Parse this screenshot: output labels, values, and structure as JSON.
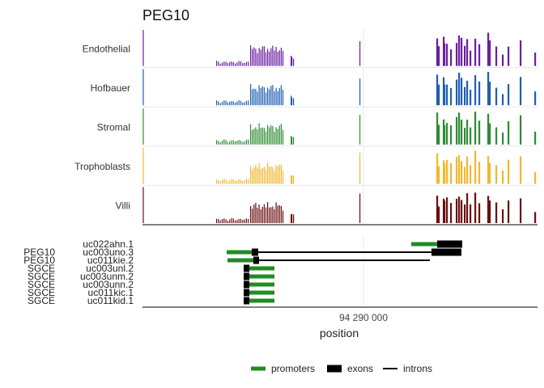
{
  "chart_data": {
    "type": "bar",
    "title": "PEG10",
    "xlabel": "position",
    "x_tick_labels": [
      "94 290 000"
    ],
    "tracks": [
      {
        "name": "Endothelial",
        "color": "#6a1fa0"
      },
      {
        "name": "Hofbauer",
        "color": "#1f5fb0"
      },
      {
        "name": "Stromal",
        "color": "#2e8b34"
      },
      {
        "name": "Trophoblasts",
        "color": "#f0b830"
      },
      {
        "name": "Villi",
        "color": "#6b1010"
      }
    ],
    "transcripts": [
      {
        "gene": "",
        "id": "uc022ahn.1"
      },
      {
        "gene": "PEG10",
        "id": "uc003uno.3"
      },
      {
        "gene": "PEG10",
        "id": "uc011kie.2"
      },
      {
        "gene": "SGCE",
        "id": "uc003unl.2"
      },
      {
        "gene": "SGCE",
        "id": "uc003unm.2"
      },
      {
        "gene": "SGCE",
        "id": "uc003unn.2"
      },
      {
        "gene": "SGCE",
        "id": "uc011kic.1"
      },
      {
        "gene": "SGCE",
        "id": "uc011kid.1"
      }
    ],
    "legend": [
      {
        "label": "promoters",
        "color": "#228b22",
        "kind": "promoters"
      },
      {
        "label": "exons",
        "color": "#000000",
        "kind": "exons"
      },
      {
        "label": "introns",
        "color": "#000000",
        "kind": "introns"
      }
    ],
    "legend_position": "bottom"
  }
}
